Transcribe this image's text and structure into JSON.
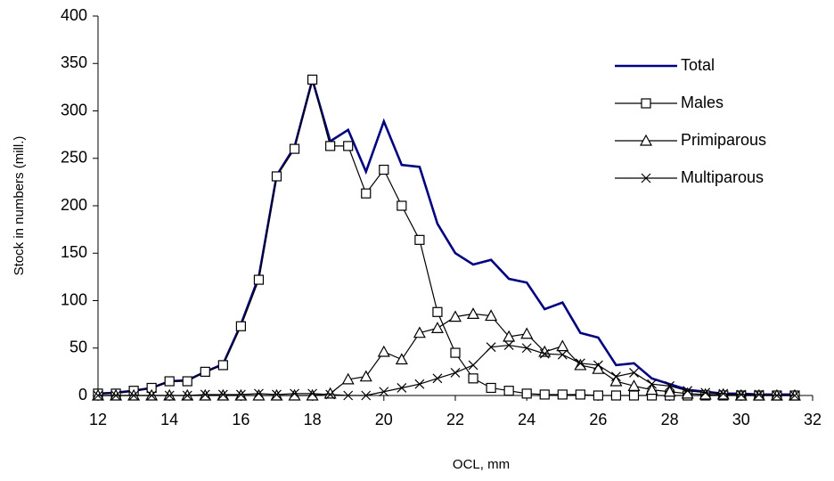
{
  "chart_data": {
    "type": "line",
    "x_label": "OCL, mm",
    "y_label": "Stock in numbers (mill.)",
    "x": [
      12,
      12.5,
      13,
      13.5,
      14,
      14.5,
      15,
      15.5,
      16,
      16.5,
      17,
      17.5,
      18,
      18.5,
      19,
      19.5,
      20,
      20.5,
      21,
      21.5,
      22,
      22.5,
      23,
      23.5,
      24,
      24.5,
      25,
      25.5,
      26,
      26.5,
      27,
      27.5,
      28,
      28.5,
      29,
      29.5,
      30,
      30.5,
      31,
      31.5
    ],
    "series": [
      {
        "name": "Total",
        "color": "#000080",
        "marker": "none",
        "values": [
          2,
          3,
          5,
          8,
          15,
          16,
          25,
          33,
          75,
          125,
          232,
          262,
          333,
          268,
          280,
          236,
          289,
          243,
          241,
          181,
          150,
          138,
          143,
          123,
          119,
          91,
          98,
          66,
          61,
          32,
          34,
          18,
          12,
          6,
          4,
          2,
          2,
          1,
          1,
          1
        ]
      },
      {
        "name": "Males",
        "color": "#000000",
        "marker": "square",
        "values": [
          2,
          2,
          5,
          8,
          15,
          15,
          25,
          32,
          73,
          122,
          231,
          260,
          333,
          263,
          263,
          213,
          238,
          200,
          164,
          88,
          45,
          18,
          8,
          5,
          2,
          1,
          1,
          1,
          0,
          0,
          0,
          0,
          0,
          0,
          0,
          0,
          0,
          0,
          0,
          0
        ]
      },
      {
        "name": "Primiparous",
        "color": "#000000",
        "marker": "triangle",
        "values": [
          0,
          0,
          0,
          0,
          0,
          0,
          0,
          0,
          0,
          0,
          0,
          0,
          0,
          2,
          17,
          20,
          46,
          38,
          66,
          71,
          83,
          86,
          84,
          62,
          65,
          46,
          52,
          32,
          28,
          15,
          10,
          6,
          4,
          2,
          1,
          1,
          0,
          0,
          0,
          0
        ]
      },
      {
        "name": "Multiparous",
        "color": "#000000",
        "marker": "cross",
        "values": [
          0,
          0,
          0,
          0,
          0,
          0,
          1,
          1,
          1,
          2,
          1,
          2,
          2,
          1,
          0,
          0,
          4,
          8,
          12,
          18,
          24,
          32,
          51,
          53,
          50,
          44,
          43,
          34,
          32,
          20,
          24,
          12,
          10,
          5,
          3,
          2,
          1,
          1,
          0,
          0
        ]
      }
    ],
    "xlim": [
      12,
      32
    ],
    "xticks": [
      12,
      14,
      16,
      18,
      20,
      22,
      24,
      26,
      28,
      30,
      32
    ],
    "ylim": [
      0,
      400
    ],
    "yticks": [
      0,
      50,
      100,
      150,
      200,
      250,
      300,
      350,
      400
    ],
    "grid": false,
    "legend_position": "upper-right"
  }
}
